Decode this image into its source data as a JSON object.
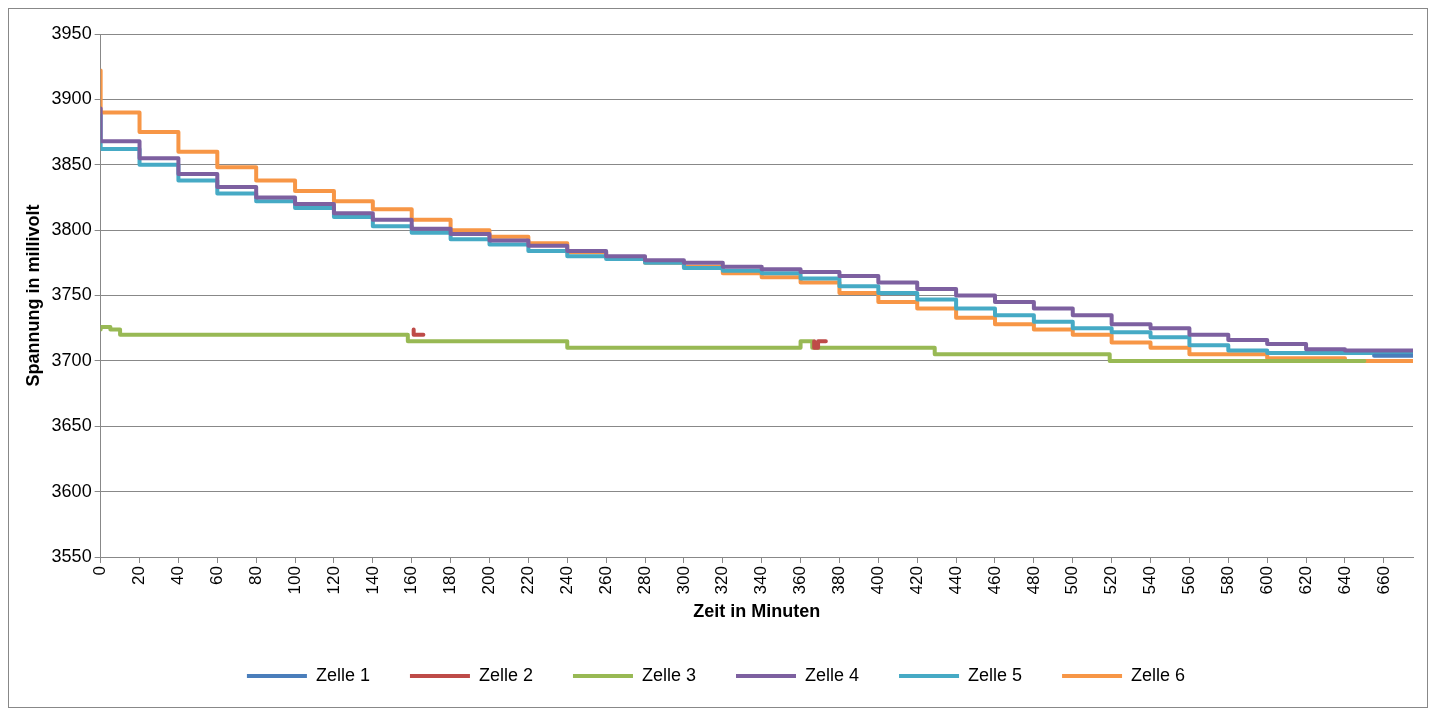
{
  "chart_data": {
    "type": "step",
    "xlabel": "Zeit in Minuten",
    "ylabel": "Spannung in millivolt",
    "xlim": [
      0,
      675
    ],
    "xticks": [
      0,
      20,
      40,
      60,
      80,
      100,
      120,
      140,
      160,
      180,
      200,
      220,
      240,
      260,
      280,
      300,
      320,
      340,
      360,
      380,
      400,
      420,
      440,
      460,
      480,
      500,
      520,
      540,
      560,
      580,
      600,
      620,
      640,
      660
    ],
    "ylim": [
      3550,
      3950
    ],
    "yticks": [
      3550,
      3600,
      3650,
      3700,
      3750,
      3800,
      3850,
      3900,
      3950
    ],
    "grid": "y",
    "legend": "bottom",
    "line_style": "solid",
    "marker": "none",
    "series": [
      {
        "name": "Zelle 1",
        "color": "#4a7ebb",
        "x": [
          655,
          675
        ],
        "values": [
          3704,
          3704
        ]
      },
      {
        "name": "Zelle 2",
        "color": "#be4b48",
        "x": [
          161,
          166,
          167,
          367,
          369,
          373
        ],
        "values": [
          3724,
          3720,
          null,
          3715,
          3710,
          3715
        ]
      },
      {
        "name": "Zelle 3",
        "color": "#98b954",
        "x": [
          0,
          5,
          10,
          158,
          240,
          360,
          366,
          429,
          519,
          625,
          650
        ],
        "values": [
          3724,
          3726,
          3724,
          3720,
          3715,
          3710,
          3715,
          3710,
          3705,
          3700,
          3700
        ]
      },
      {
        "name": "Zelle 4",
        "color": "#7d60a0",
        "x": [
          0,
          20,
          40,
          60,
          80,
          100,
          120,
          140,
          160,
          180,
          200,
          220,
          240,
          260,
          280,
          300,
          320,
          340,
          360,
          380,
          400,
          420,
          440,
          460,
          480,
          500,
          520,
          540,
          560,
          580,
          600,
          620,
          640,
          660,
          675
        ],
        "values": [
          3893,
          3868,
          3855,
          3843,
          3833,
          3825,
          3820,
          3813,
          3808,
          3801,
          3797,
          3792,
          3788,
          3784,
          3780,
          3777,
          3775,
          3772,
          3770,
          3768,
          3765,
          3760,
          3755,
          3750,
          3745,
          3740,
          3735,
          3728,
          3725,
          3720,
          3716,
          3713,
          3709,
          3708,
          3708
        ]
      },
      {
        "name": "Zelle 5",
        "color": "#46aac5",
        "x": [
          0,
          20,
          40,
          60,
          80,
          100,
          120,
          140,
          160,
          180,
          200,
          220,
          240,
          260,
          280,
          300,
          320,
          340,
          360,
          380,
          400,
          420,
          440,
          460,
          480,
          500,
          520,
          540,
          560,
          580,
          600,
          640,
          675
        ],
        "values": [
          3888,
          3862,
          3850,
          3838,
          3828,
          3822,
          3817,
          3810,
          3803,
          3798,
          3793,
          3789,
          3784,
          3780,
          3778,
          3775,
          3771,
          3769,
          3767,
          3763,
          3757,
          3752,
          3747,
          3740,
          3735,
          3730,
          3725,
          3722,
          3718,
          3712,
          3708,
          3706,
          3706
        ]
      },
      {
        "name": "Zelle 6",
        "color": "#f79646",
        "x": [
          0,
          20,
          40,
          60,
          80,
          100,
          120,
          140,
          160,
          180,
          200,
          220,
          240,
          260,
          280,
          300,
          320,
          340,
          360,
          380,
          400,
          420,
          440,
          460,
          480,
          500,
          520,
          540,
          560,
          580,
          600,
          640,
          675
        ],
        "values": [
          3922,
          3890,
          3875,
          3860,
          3848,
          3838,
          3830,
          3822,
          3816,
          3808,
          3800,
          3795,
          3790,
          3783,
          3779,
          3775,
          3772,
          3767,
          3764,
          3760,
          3752,
          3745,
          3740,
          3733,
          3728,
          3724,
          3720,
          3714,
          3710,
          3705,
          3705,
          3702,
          3700
        ]
      }
    ]
  }
}
